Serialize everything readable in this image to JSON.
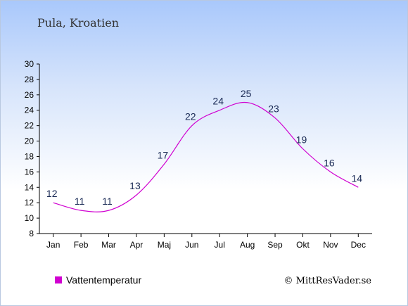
{
  "chart_data": {
    "type": "line",
    "title": "Pula, Kroatien",
    "categories": [
      "Jan",
      "Feb",
      "Mar",
      "Apr",
      "Maj",
      "Jun",
      "Jul",
      "Aug",
      "Sep",
      "Okt",
      "Nov",
      "Dec"
    ],
    "series": [
      {
        "name": "Vattentemperatur",
        "values": [
          12,
          11,
          11,
          13,
          17,
          22,
          24,
          25,
          23,
          19,
          16,
          14
        ],
        "color": "#d000d0"
      }
    ],
    "ylim": [
      8,
      30
    ],
    "yticks": [
      8,
      10,
      12,
      14,
      16,
      18,
      20,
      22,
      24,
      26,
      28,
      30
    ],
    "grid": false,
    "legend_position": "bottom-left"
  },
  "credit": "© MittResVader.se"
}
